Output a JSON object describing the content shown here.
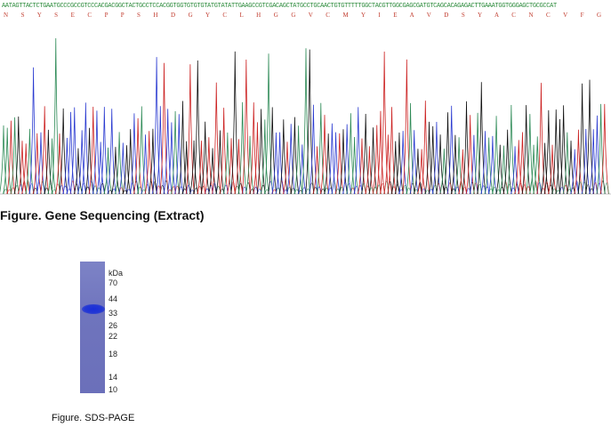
{
  "sequencing": {
    "dna": "AATAGTTACTCTGAATGCCCGCCGTCCCACGACGGCTACTGCCTCCACGGTGGTGTGTGTATGTATATTGAAGCCGTCGACAGCTATGCCTGCAACTGTGTTTTTGGCTACGTTGGCGAGCGATGTCAGCACAGAGACTTGAAATGGTGGGAGCTGCGCCAT",
    "aa": "N S Y S E C P P S H D G Y C L H G G V C M Y I E A V D S Y A C N C V F G Y V G E R C Q H R D L K W W E L R H",
    "caption": "Figure. Gene Sequencing (Extract)",
    "trace_colors": {
      "A": "#2e8b57",
      "C": "#2b3bd1",
      "G": "#111111",
      "T": "#cc2222"
    }
  },
  "sds_page": {
    "unit_label": "kDa",
    "markers": [
      "70",
      "44",
      "33",
      "26",
      "22",
      "18",
      "14",
      "10"
    ],
    "caption": "Figure. SDS-PAGE"
  }
}
